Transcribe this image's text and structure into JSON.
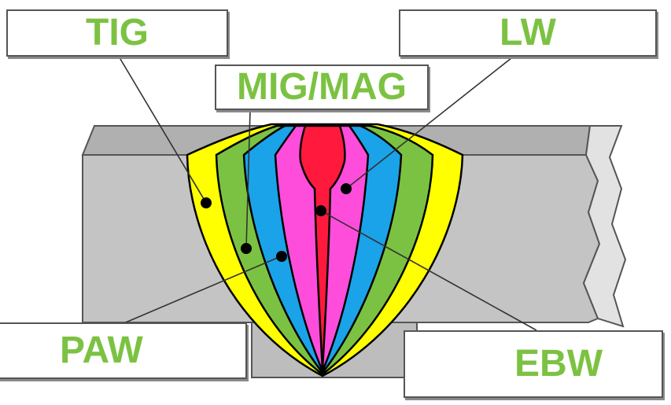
{
  "labels": {
    "tig": "TIG",
    "lw": "LW",
    "mig_mag": "MIG/MAG",
    "paw": "PAW",
    "ebw": "EBW"
  },
  "colors": {
    "label_text": "#7cc242",
    "plate": "#bdbdbd",
    "plate_top": "#a8a8a8",
    "zone_yellow": "#ffff00",
    "zone_green": "#7cc242",
    "zone_blue": "#1aa3e8",
    "zone_magenta": "#ff4ddb",
    "zone_red": "#ff1a3d"
  }
}
